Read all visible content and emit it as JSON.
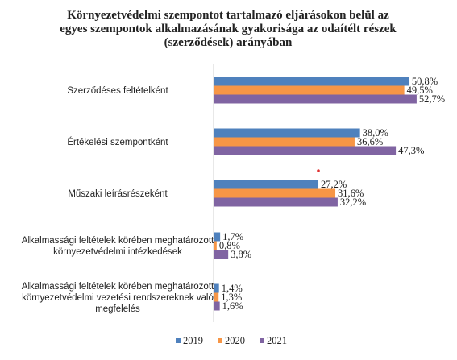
{
  "chart_data": {
    "type": "bar",
    "orientation": "horizontal",
    "title_lines": [
      "Környezetvédelmi szempontot tartalmazó eljárásokon belül az",
      "egyes szempontok alkalmazásának gyakorisága az odaítélt részek",
      "(szerződések) arányában"
    ],
    "categories": [
      {
        "label_lines": [
          "Szerződéses feltételként"
        ]
      },
      {
        "label_lines": [
          "Értékelési szempontként"
        ]
      },
      {
        "label_lines": [
          "Műszaki leírásrészeként"
        ]
      },
      {
        "label_lines": [
          "Alkalmassági feltételek körében meghatározott",
          "környezetvédelmi intézkedések"
        ]
      },
      {
        "label_lines": [
          "Alkalmassági feltételek körében meghatározott",
          "környezetvédelmi vezetési rendszereknek való",
          "megfelelés"
        ]
      }
    ],
    "series": [
      {
        "name": "2019",
        "color": "#4f81bd",
        "values": [
          50.8,
          38.0,
          27.2,
          1.7,
          1.4
        ],
        "labels": [
          "50,8%",
          "38,0%",
          "27,2%",
          "1,7%",
          "1,4%"
        ]
      },
      {
        "name": "2020",
        "color": "#f79646",
        "values": [
          49.5,
          36.6,
          31.6,
          0.8,
          1.3
        ],
        "labels": [
          "49,5%",
          "36,6%",
          "31,6%",
          "0,8%",
          "1,3%"
        ]
      },
      {
        "name": "2021",
        "color": "#8064a2",
        "values": [
          52.7,
          47.3,
          32.2,
          3.8,
          1.6
        ],
        "labels": [
          "52,7%",
          "47,3%",
          "32,2%",
          "3,8%",
          "1,6%"
        ]
      }
    ],
    "xlim": [
      0,
      60
    ],
    "unit": "%",
    "grid": false,
    "legend_position": "bottom"
  }
}
